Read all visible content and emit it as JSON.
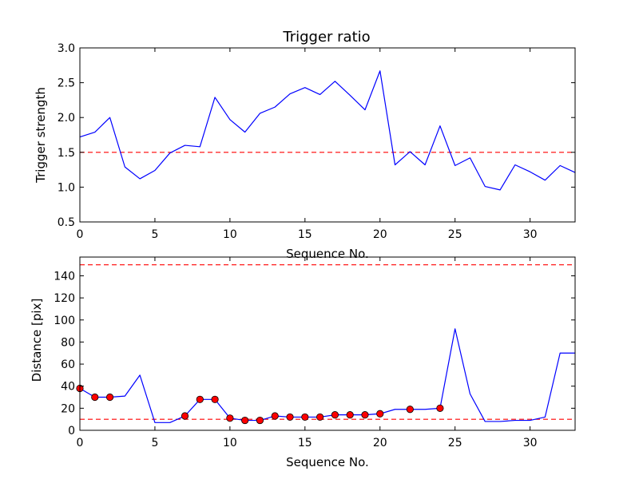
{
  "chart_data": [
    {
      "type": "line",
      "title": "Trigger ratio",
      "xlabel": "Sequence No.",
      "ylabel": "Trigger strength",
      "xlim": [
        0,
        33
      ],
      "ylim": [
        0.5,
        3.0
      ],
      "xticks": [
        0,
        5,
        10,
        15,
        20,
        25,
        30
      ],
      "xtick_labels": [
        "0",
        "5",
        "10",
        "15",
        "20",
        "25",
        "30"
      ],
      "yticks": [
        0.5,
        1.0,
        1.5,
        2.0,
        2.5,
        3.0
      ],
      "ytick_labels": [
        "0.5",
        "1.0",
        "1.5",
        "2.0",
        "2.5",
        "3.0"
      ],
      "grid": false,
      "series": [
        {
          "color": "#0000ff",
          "x": [
            0,
            1,
            2,
            3,
            4,
            5,
            6,
            7,
            8,
            9,
            10,
            11,
            12,
            13,
            14,
            15,
            16,
            17,
            18,
            19,
            20,
            21,
            22,
            23,
            24,
            25,
            26,
            27,
            28,
            29,
            30,
            31,
            32,
            33
          ],
          "y": [
            1.72,
            1.79,
            2.0,
            1.29,
            1.12,
            1.24,
            1.49,
            1.6,
            1.58,
            2.29,
            1.97,
            1.79,
            2.06,
            2.15,
            2.34,
            2.43,
            2.33,
            2.52,
            2.32,
            2.11,
            2.67,
            1.32,
            1.51,
            1.32,
            1.88,
            1.31,
            1.42,
            1.01,
            0.96,
            1.32,
            1.22,
            1.1,
            1.31,
            1.21
          ]
        }
      ],
      "hlines": [
        {
          "y": 1.5,
          "color": "#ff0000",
          "style": "dashed"
        }
      ]
    },
    {
      "type": "line",
      "title": "",
      "xlabel": "Sequence No.",
      "ylabel": "Distance [pix]",
      "xlim": [
        0,
        33
      ],
      "ylim": [
        0,
        157
      ],
      "xticks": [
        0,
        5,
        10,
        15,
        20,
        25,
        30
      ],
      "xtick_labels": [
        "0",
        "5",
        "10",
        "15",
        "20",
        "25",
        "30"
      ],
      "yticks": [
        0,
        20,
        40,
        60,
        80,
        100,
        120,
        140
      ],
      "ytick_labels": [
        "0",
        "20",
        "40",
        "60",
        "80",
        "100",
        "120",
        "140"
      ],
      "grid": false,
      "series": [
        {
          "color": "#0000ff",
          "x": [
            0,
            1,
            2,
            3,
            4,
            5,
            6,
            7,
            8,
            9,
            10,
            11,
            12,
            13,
            14,
            15,
            16,
            17,
            18,
            19,
            20,
            21,
            22,
            23,
            24,
            25,
            26,
            27,
            28,
            29,
            30,
            31,
            32,
            33
          ],
          "y": [
            38,
            30,
            30,
            31,
            50,
            7,
            7,
            13,
            28,
            28,
            11,
            9,
            9,
            13,
            12,
            12,
            12,
            14,
            14,
            14,
            15,
            19,
            19,
            19,
            20,
            92,
            33,
            8,
            8,
            9,
            9,
            12,
            70,
            70
          ]
        }
      ],
      "markers": {
        "color": "#ff0000",
        "edge_color": "#000000",
        "x": [
          0,
          1,
          2,
          7,
          8,
          9,
          10,
          11,
          12,
          13,
          14,
          15,
          16,
          17,
          18,
          19,
          20,
          22,
          24
        ],
        "y": [
          38,
          30,
          30,
          13,
          28,
          28,
          11,
          9,
          9,
          13,
          12,
          12,
          12,
          14,
          14,
          14,
          15,
          19,
          20
        ]
      },
      "hlines": [
        {
          "y": 150,
          "color": "#ff0000",
          "style": "dashed"
        },
        {
          "y": 10,
          "color": "#ff0000",
          "style": "dashed"
        }
      ]
    }
  ]
}
